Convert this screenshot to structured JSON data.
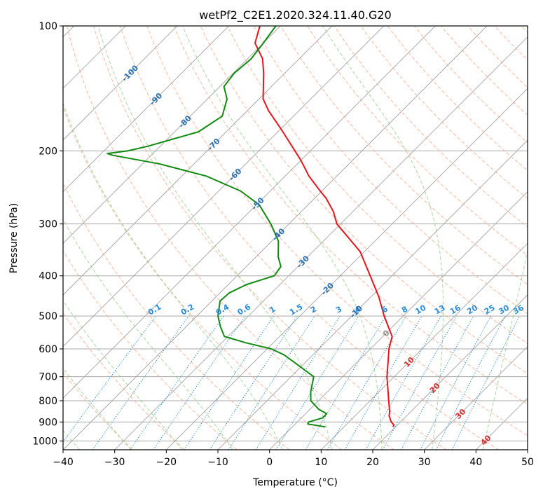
{
  "chart_data": {
    "type": "line",
    "subtype": "skew-t log-p diagram",
    "title": "wetPf2_C2E1.2020.324.11.40.G20",
    "xlabel": "Temperature (°C)",
    "ylabel": "Pressure (hPa)",
    "xlim": [
      -40,
      50
    ],
    "ylim": [
      1050,
      100
    ],
    "y_scale": "log",
    "x_ticks": [
      "−40",
      "−30",
      "−20",
      "−10",
      "0",
      "10",
      "20",
      "30",
      "40",
      "50"
    ],
    "y_ticks": [
      "100",
      "200",
      "300",
      "400",
      "500",
      "600",
      "700",
      "800",
      "900",
      "1000"
    ],
    "grid": true,
    "series": [
      {
        "color": "#e8151b",
        "role": "temperature",
        "pressure": [
          925,
          915,
          900,
          870,
          850,
          800,
          700,
          600,
          560,
          500,
          450,
          400,
          350,
          300,
          280,
          260,
          250,
          230,
          210,
          200,
          180,
          160,
          150,
          130,
          120,
          110,
          100
        ],
        "values": [
          19.5,
          19.3,
          18.2,
          16.6,
          15.9,
          13.6,
          8.6,
          3.6,
          1.8,
          -3.7,
          -8.4,
          -14.2,
          -20.8,
          -30.7,
          -33.8,
          -37.8,
          -40.3,
          -45.4,
          -50.2,
          -53.0,
          -59.0,
          -65.9,
          -69.2,
          -74.1,
          -77.1,
          -81.6,
          -84.0
        ]
      },
      {
        "color": "#118a11",
        "role": "dewpoint",
        "pressure": [
          925,
          910,
          900,
          880,
          860,
          850,
          840,
          800,
          760,
          700,
          650,
          620,
          600,
          580,
          560,
          530,
          500,
          460,
          440,
          420,
          400,
          380,
          360,
          330,
          300,
          270,
          250,
          230,
          215,
          205,
          203,
          200,
          195,
          180,
          165,
          150,
          140,
          130,
          120,
          110,
          100
        ],
        "values": [
          6.4,
          2.4,
          2.2,
          4.1,
          4.1,
          3.0,
          1.8,
          -1.5,
          -3.3,
          -5.6,
          -11.7,
          -15.6,
          -19.2,
          -25.3,
          -30.7,
          -33.4,
          -35.9,
          -38.4,
          -38.2,
          -36.5,
          -32.8,
          -33.3,
          -35.7,
          -38.7,
          -43.5,
          -49.4,
          -55.7,
          -65.3,
          -76.7,
          -87.4,
          -88.8,
          -85.4,
          -82.4,
          -75.4,
          -73.8,
          -76.2,
          -79.2,
          -79.8,
          -79.3,
          -80.0,
          -80.9
        ]
      }
    ],
    "reference_lines": {
      "dry_adiabats_C": [
        -30,
        -20,
        -10,
        0,
        10,
        20,
        30,
        40,
        50,
        60,
        70,
        80,
        90,
        100,
        110,
        120,
        130,
        140,
        150,
        160,
        170,
        180,
        190,
        200,
        210,
        220,
        230,
        240,
        250
      ],
      "moist_adiabats_C": [
        -40,
        -30,
        -20,
        -10,
        0,
        10,
        20,
        30,
        40
      ],
      "mixing_ratio_g_per_kg": [
        0.1,
        0.2,
        0.4,
        0.6,
        1,
        1.5,
        2,
        3,
        4,
        6,
        8,
        10,
        13,
        16,
        20,
        25,
        30,
        36
      ],
      "dry_adiabat_color": "#f9a07c",
      "moist_adiabat_color": "#6cbf5f",
      "mixing_ratio_color": "#2a8bd8",
      "isotherm_color": "#9a9a9a"
    },
    "annotations": {
      "isotherm_labels": [
        "-100",
        "-90",
        "-80",
        "-70",
        "-60",
        "-50",
        "-40",
        "-30",
        "-20",
        "-10",
        "0",
        "10",
        "20",
        "30",
        "40"
      ],
      "mixing_ratio_labels": [
        "0.1",
        "0.2",
        "0.4",
        "0.6",
        "1",
        "1.5",
        "2",
        "3",
        "4",
        "6",
        "8",
        "10",
        "13",
        "16",
        "20",
        "25",
        "30",
        "36"
      ]
    }
  }
}
